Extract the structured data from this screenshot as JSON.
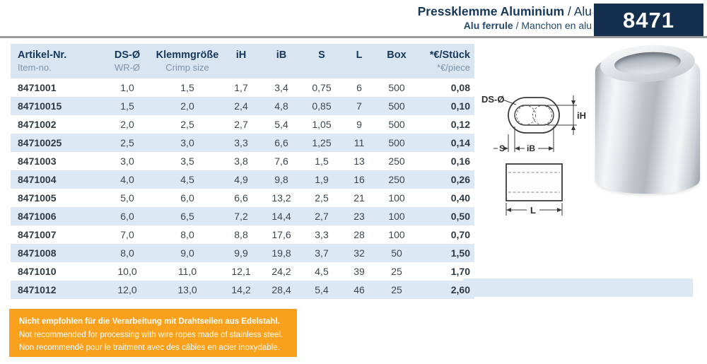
{
  "header": {
    "title_bold": "Pressklemme Aluminium",
    "title_rest": " / Alu",
    "subtitle_bold": "Alu ferrule",
    "subtitle_rest": " / Manchon en alu",
    "product_number": "8471"
  },
  "colors": {
    "navy_badge": "#132f4d",
    "table_header_bg": "#d9e6f2",
    "row_stripe": "#dce9f4",
    "warning_orange": "#f9a11c",
    "header_rule_gray": "#9b9b9b"
  },
  "table": {
    "columns": [
      {
        "label1": "Artikel-Nr.",
        "label2": "Item-no.",
        "align": "left"
      },
      {
        "label1": "DS-Ø",
        "label2": "WR-Ø",
        "align": "center"
      },
      {
        "label1": "Klemmgröße",
        "label2": "Crimp size",
        "align": "center"
      },
      {
        "label1": "iH",
        "label2": "",
        "align": "center"
      },
      {
        "label1": "iB",
        "label2": "",
        "align": "center"
      },
      {
        "label1": "S",
        "label2": "",
        "align": "center"
      },
      {
        "label1": "L",
        "label2": "",
        "align": "center"
      },
      {
        "label1": "Box",
        "label2": "",
        "align": "center"
      },
      {
        "label1": "*€/Stück",
        "label2": "*€/piece",
        "align": "right"
      }
    ],
    "rows": [
      [
        "8471001",
        "1,0",
        "1,5",
        "1,7",
        "3,4",
        "0,75",
        "6",
        "500",
        "0,08"
      ],
      [
        "84710015",
        "1,5",
        "2,0",
        "2,4",
        "4,8",
        "0,85",
        "7",
        "500",
        "0,10"
      ],
      [
        "8471002",
        "2,0",
        "2,5",
        "2,7",
        "5,4",
        "1,05",
        "9",
        "500",
        "0,12"
      ],
      [
        "84710025",
        "2,5",
        "3,0",
        "3,3",
        "6,6",
        "1,25",
        "11",
        "500",
        "0,14"
      ],
      [
        "8471003",
        "3,0",
        "3,5",
        "3,8",
        "7,6",
        "1,5",
        "13",
        "250",
        "0,16"
      ],
      [
        "8471004",
        "4,0",
        "4,5",
        "4,9",
        "9,8",
        "1,9",
        "16",
        "250",
        "0,26"
      ],
      [
        "8471005",
        "5,0",
        "6,0",
        "6,6",
        "13,2",
        "2,5",
        "21",
        "100",
        "0,40"
      ],
      [
        "8471006",
        "6,0",
        "6,5",
        "7,2",
        "14,4",
        "2,7",
        "23",
        "100",
        "0,50"
      ],
      [
        "8471007",
        "7,0",
        "8,0",
        "8,8",
        "17,6",
        "3,3",
        "28",
        "100",
        "0,70"
      ],
      [
        "8471008",
        "8,0",
        "9,0",
        "9,9",
        "19,8",
        "3,7",
        "32",
        "50",
        "1,50"
      ],
      [
        "8471010",
        "10,0",
        "11,0",
        "12,1",
        "24,2",
        "4,5",
        "39",
        "25",
        "1,70"
      ],
      [
        "8471012",
        "12,0",
        "13,0",
        "14,2",
        "28,4",
        "5,4",
        "46",
        "25",
        "2,60"
      ]
    ]
  },
  "diagram": {
    "labels": {
      "ds": "DS-Ø",
      "ih": "iH",
      "s": "S",
      "ib": "iB",
      "l": "L"
    }
  },
  "warning": {
    "line1": "Nicht empfohlen für die Verarbeitung mit Drahtseilen aus Edelstahl.",
    "line2": "Not recommended for processing with wire ropes made of stainless steel.",
    "line3": "Non recommendé pour le traitment avec des câbles en acier inoxydable."
  }
}
